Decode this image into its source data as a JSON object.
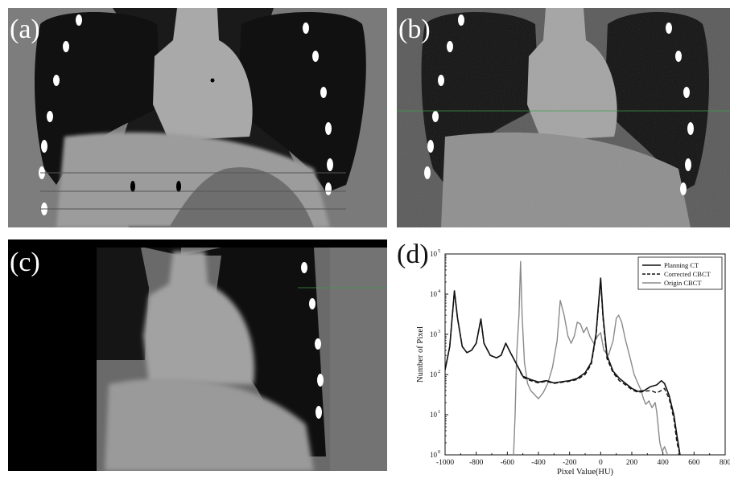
{
  "panels": {
    "a": {
      "label": "(a)"
    },
    "b": {
      "label": "(b)"
    },
    "c": {
      "label": "(c)"
    },
    "d": {
      "label": "(d)"
    }
  },
  "chart_data": {
    "type": "line",
    "xlabel": "Pixel Value(HU)",
    "ylabel": "Number of Pixel",
    "xlim": [
      -1000,
      800
    ],
    "ylim_log10": [
      0,
      5
    ],
    "yscale": "log",
    "xticks": [
      -1000,
      -800,
      -600,
      -400,
      -200,
      0,
      200,
      400,
      600,
      800
    ],
    "xtick_labels": [
      "-1000",
      "-800",
      "-600",
      "-400",
      "-200",
      "0",
      "200",
      "400",
      "600",
      "800"
    ],
    "yticks_log10": [
      0,
      1,
      2,
      3,
      4,
      5
    ],
    "ytick_labels": [
      "10",
      "10",
      "10",
      "10",
      "10",
      "10"
    ],
    "ytick_exponents": [
      "0",
      "1",
      "2",
      "3",
      "4",
      "5"
    ],
    "legend_position": "top-right",
    "series": [
      {
        "name": "Planning CT",
        "style": "solid",
        "color": "#111111",
        "width": 1.6,
        "points": [
          [
            -1000,
            130
          ],
          [
            -970,
            500
          ],
          [
            -940,
            12000
          ],
          [
            -920,
            2500
          ],
          [
            -890,
            500
          ],
          [
            -860,
            350
          ],
          [
            -830,
            400
          ],
          [
            -800,
            600
          ],
          [
            -770,
            2400
          ],
          [
            -750,
            600
          ],
          [
            -710,
            300
          ],
          [
            -670,
            260
          ],
          [
            -640,
            300
          ],
          [
            -610,
            600
          ],
          [
            -580,
            350
          ],
          [
            -540,
            180
          ],
          [
            -500,
            90
          ],
          [
            -450,
            75
          ],
          [
            -400,
            65
          ],
          [
            -350,
            70
          ],
          [
            -300,
            62
          ],
          [
            -250,
            66
          ],
          [
            -200,
            70
          ],
          [
            -150,
            80
          ],
          [
            -100,
            110
          ],
          [
            -60,
            200
          ],
          [
            -30,
            1000
          ],
          [
            -15,
            5000
          ],
          [
            0,
            25000
          ],
          [
            15,
            3000
          ],
          [
            40,
            300
          ],
          [
            80,
            120
          ],
          [
            120,
            80
          ],
          [
            160,
            60
          ],
          [
            200,
            45
          ],
          [
            240,
            38
          ],
          [
            280,
            40
          ],
          [
            320,
            50
          ],
          [
            360,
            55
          ],
          [
            390,
            70
          ],
          [
            410,
            60
          ],
          [
            440,
            30
          ],
          [
            470,
            10
          ],
          [
            490,
            3
          ],
          [
            510,
            1
          ]
        ]
      },
      {
        "name": "Corrected CBCT",
        "style": "dashed",
        "color": "#111111",
        "width": 1.4,
        "points": [
          [
            -1000,
            130
          ],
          [
            -970,
            500
          ],
          [
            -940,
            12000
          ],
          [
            -920,
            2500
          ],
          [
            -890,
            500
          ],
          [
            -860,
            350
          ],
          [
            -830,
            400
          ],
          [
            -800,
            600
          ],
          [
            -770,
            2400
          ],
          [
            -750,
            600
          ],
          [
            -710,
            300
          ],
          [
            -670,
            260
          ],
          [
            -640,
            300
          ],
          [
            -610,
            600
          ],
          [
            -580,
            350
          ],
          [
            -540,
            180
          ],
          [
            -500,
            85
          ],
          [
            -450,
            70
          ],
          [
            -400,
            62
          ],
          [
            -350,
            68
          ],
          [
            -300,
            60
          ],
          [
            -250,
            64
          ],
          [
            -200,
            68
          ],
          [
            -150,
            75
          ],
          [
            -100,
            100
          ],
          [
            -60,
            180
          ],
          [
            -30,
            900
          ],
          [
            -15,
            4500
          ],
          [
            0,
            22000
          ],
          [
            15,
            2500
          ],
          [
            40,
            250
          ],
          [
            80,
            110
          ],
          [
            120,
            70
          ],
          [
            160,
            55
          ],
          [
            200,
            42
          ],
          [
            240,
            36
          ],
          [
            280,
            38
          ],
          [
            320,
            40
          ],
          [
            360,
            35
          ],
          [
            390,
            40
          ],
          [
            410,
            45
          ],
          [
            440,
            25
          ],
          [
            470,
            8
          ],
          [
            490,
            2
          ],
          [
            510,
            1
          ]
        ]
      },
      {
        "name": "Origin CBCT",
        "style": "solid",
        "color": "#8a8a8a",
        "width": 1.4,
        "points": [
          [
            -560,
            1
          ],
          [
            -550,
            10
          ],
          [
            -540,
            300
          ],
          [
            -525,
            3000
          ],
          [
            -515,
            65000
          ],
          [
            -505,
            3000
          ],
          [
            -490,
            200
          ],
          [
            -470,
            60
          ],
          [
            -450,
            40
          ],
          [
            -420,
            30
          ],
          [
            -400,
            25
          ],
          [
            -370,
            35
          ],
          [
            -340,
            60
          ],
          [
            -310,
            150
          ],
          [
            -280,
            700
          ],
          [
            -260,
            7000
          ],
          [
            -235,
            3000
          ],
          [
            -210,
            900
          ],
          [
            -190,
            600
          ],
          [
            -170,
            900
          ],
          [
            -150,
            2000
          ],
          [
            -130,
            1800
          ],
          [
            -110,
            1100
          ],
          [
            -90,
            1500
          ],
          [
            -70,
            900
          ],
          [
            -45,
            600
          ],
          [
            -20,
            900
          ],
          [
            0,
            1100
          ],
          [
            20,
            400
          ],
          [
            50,
            300
          ],
          [
            80,
            700
          ],
          [
            100,
            2500
          ],
          [
            115,
            3000
          ],
          [
            135,
            2000
          ],
          [
            160,
            700
          ],
          [
            190,
            250
          ],
          [
            215,
            100
          ],
          [
            240,
            60
          ],
          [
            260,
            40
          ],
          [
            275,
            25
          ],
          [
            290,
            18
          ],
          [
            310,
            22
          ],
          [
            330,
            15
          ],
          [
            350,
            20
          ],
          [
            360,
            12
          ],
          [
            380,
            2
          ],
          [
            395,
            1.2
          ],
          [
            410,
            1.6
          ],
          [
            430,
            1
          ]
        ]
      }
    ]
  }
}
